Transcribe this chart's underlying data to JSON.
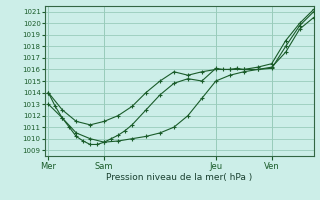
{
  "background_color": "#cceee8",
  "grid_color": "#99ccbb",
  "line_color": "#1a5c2a",
  "title": "Pression niveau de la mer( hPa )",
  "ylim_min": 1008.5,
  "ylim_max": 1021.5,
  "yticks": [
    1009,
    1010,
    1011,
    1012,
    1013,
    1014,
    1015,
    1016,
    1017,
    1018,
    1019,
    1020,
    1021
  ],
  "xtick_labels": [
    "Mer",
    "Sam",
    "Jeu",
    "Ven"
  ],
  "xtick_positions": [
    0,
    8,
    24,
    32
  ],
  "xmax": 38,
  "line1_x": [
    0,
    1,
    2,
    3,
    4,
    5,
    6,
    7,
    8,
    9,
    10,
    11,
    12,
    14,
    16,
    18,
    20,
    22,
    24,
    25,
    26,
    27,
    28,
    30,
    32,
    34,
    36,
    38
  ],
  "line1_y": [
    1014.0,
    1012.8,
    1011.8,
    1011.0,
    1010.2,
    1009.8,
    1009.5,
    1009.5,
    1009.7,
    1010.0,
    1010.3,
    1010.7,
    1011.2,
    1012.5,
    1013.8,
    1014.8,
    1015.2,
    1015.0,
    1016.1,
    1016.0,
    1016.0,
    1016.1,
    1016.0,
    1016.2,
    1016.5,
    1018.5,
    1020.0,
    1021.2
  ],
  "line2_x": [
    0,
    2,
    4,
    6,
    8,
    10,
    12,
    14,
    16,
    18,
    20,
    22,
    24,
    26,
    28,
    30,
    32,
    34,
    36,
    38
  ],
  "line2_y": [
    1014.0,
    1012.5,
    1011.5,
    1011.2,
    1011.5,
    1012.0,
    1012.8,
    1014.0,
    1015.0,
    1015.8,
    1015.5,
    1015.8,
    1016.0,
    1016.0,
    1016.0,
    1016.0,
    1016.1,
    1018.0,
    1019.8,
    1021.0
  ],
  "line3_x": [
    0,
    2,
    4,
    6,
    8,
    10,
    12,
    14,
    16,
    18,
    20,
    22,
    24,
    26,
    28,
    30,
    32,
    34,
    36,
    38
  ],
  "line3_y": [
    1013.0,
    1011.8,
    1010.5,
    1010.0,
    1009.7,
    1009.8,
    1010.0,
    1010.2,
    1010.5,
    1011.0,
    1012.0,
    1013.5,
    1015.0,
    1015.5,
    1015.8,
    1016.0,
    1016.2,
    1017.5,
    1019.5,
    1020.5
  ]
}
